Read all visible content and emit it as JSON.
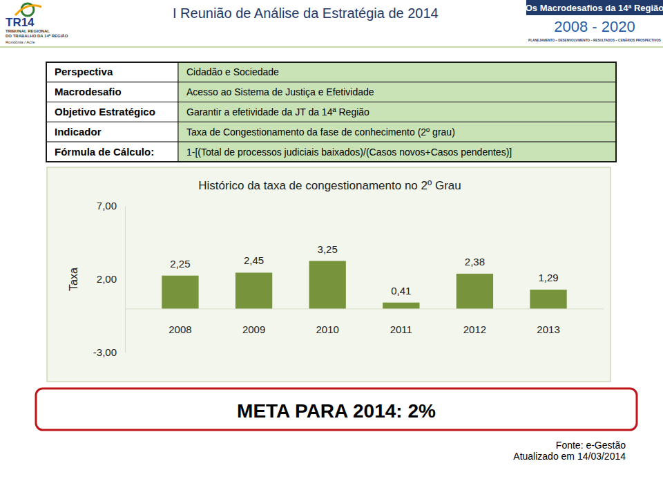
{
  "header": {
    "logo": "TR14",
    "logo_caption": [
      "TRIBUNAL REGIONAL",
      "DO TRABALHO DA 14ª REGIÃO"
    ],
    "logo_region": "Rondônia / Acre",
    "title": "I Reunião de Análise da Estratégia de 2014",
    "banner": "Os Macrodesafios da 14ª Região",
    "years": "2008 - 2020",
    "tagline": "PLANEJAMENTO – DESENVOLVIMENTO – RESULTADOS – CENÁRIOS PROSPECTIVOS"
  },
  "table": {
    "rows": [
      [
        "Perspectiva",
        "Cidadão e Sociedade"
      ],
      [
        "Macrodesafio",
        "Acesso ao Sistema de Justiça e Efetividade"
      ],
      [
        "Objetivo Estratégico",
        "Garantir a efetividade da JT da 14ª Região"
      ],
      [
        "Indicador",
        "Taxa de Congestionamento da fase de conhecimento (2º grau)"
      ],
      [
        "Fórmula de Cálculo:",
        "1-[(Total de processos judiciais baixados)/(Casos novos+Casos pendentes)]"
      ]
    ]
  },
  "chart_data": {
    "type": "bar",
    "title": "Histórico da taxa de congestionamento no 2º Grau",
    "ylabel": "Taxa",
    "categories": [
      "2008",
      "2009",
      "2010",
      "2011",
      "2012",
      "2013"
    ],
    "values": [
      2.25,
      2.45,
      3.25,
      0.41,
      2.38,
      1.29
    ],
    "value_labels": [
      "2,25",
      "2,45",
      "3,25",
      "0,41",
      "2,38",
      "1,29"
    ],
    "color": "#77933c",
    "ylim": [
      -3,
      7
    ],
    "yticks": [
      {
        "value": -3,
        "label": "-3,00"
      },
      {
        "value": 2,
        "label": "2,00"
      },
      {
        "value": 7,
        "label": "7,00"
      }
    ],
    "grid": false,
    "data_labels": true
  },
  "goal": "META PARA 2014: 2%",
  "footer": {
    "source": "Fonte: e-Gestão",
    "updated": "Atualizado em 14/03/2014"
  }
}
